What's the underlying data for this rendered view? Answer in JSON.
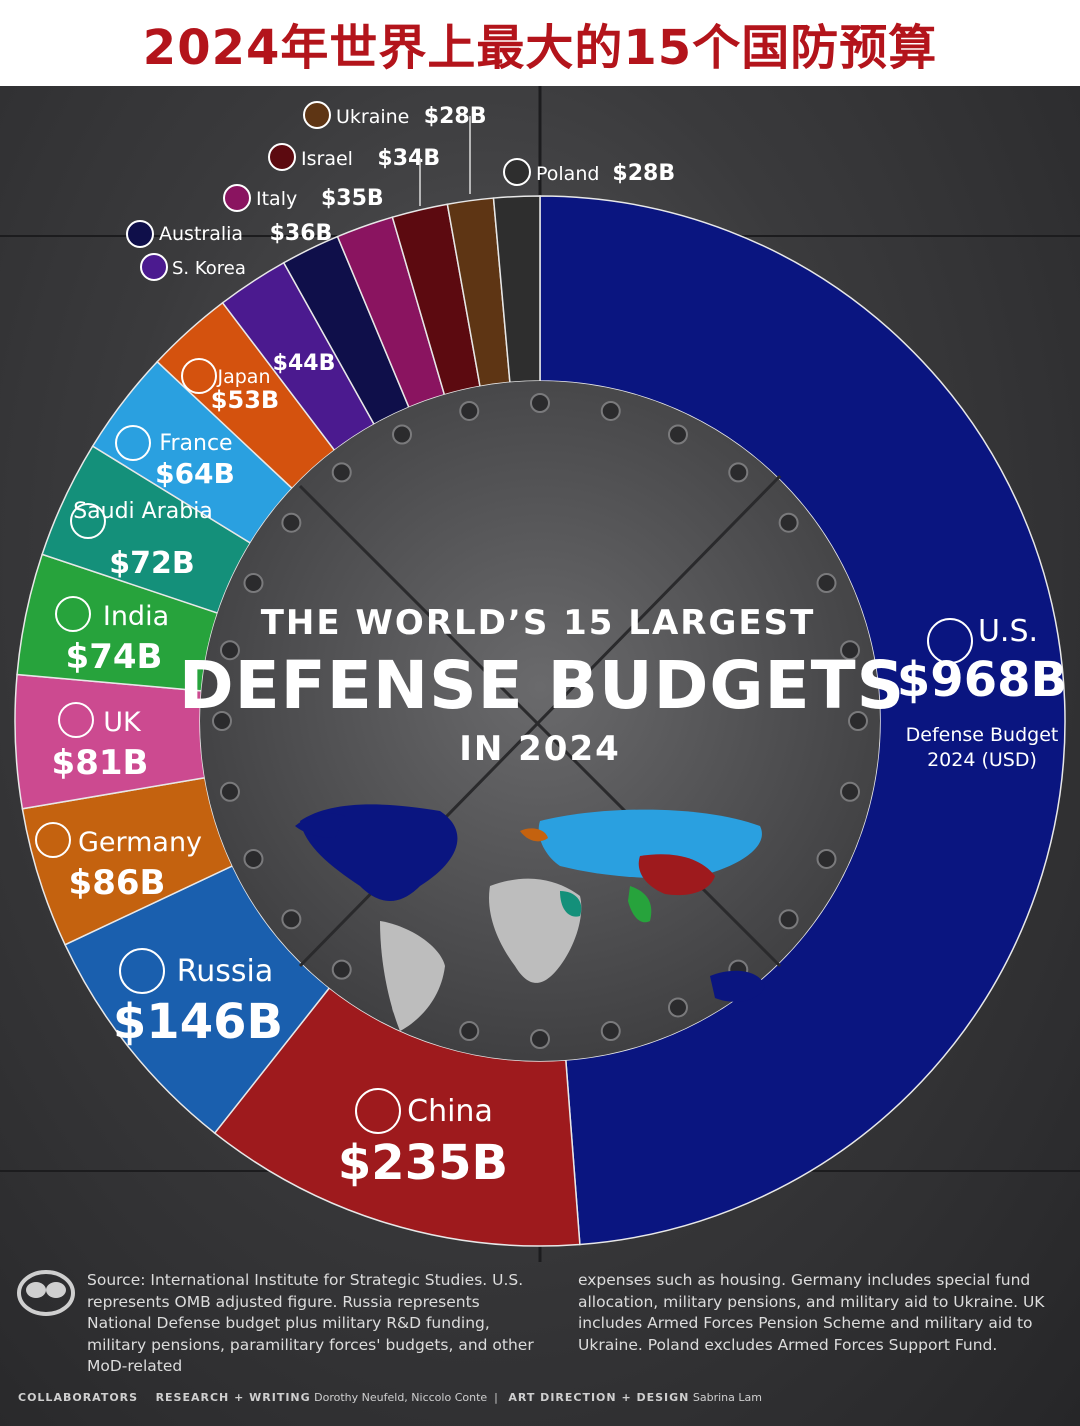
{
  "header": {
    "title": "2024年世界上最大的15个国防预算"
  },
  "center": {
    "line1": "THE WORLD’S 15 LARGEST",
    "line2": "DEFENSE BUDGETS",
    "line3": "IN 2024"
  },
  "us_caption": {
    "line1": "Defense Budget",
    "line2": "2024 (USD)"
  },
  "chart_data": {
    "type": "donut",
    "title": "THE WORLD’S 15 LARGEST DEFENSE BUDGETS IN 2024",
    "unit": "USD billions",
    "slices": [
      {
        "name": "U.S.",
        "value": 968,
        "label": "$968B",
        "color": "#0a1580"
      },
      {
        "name": "China",
        "value": 235,
        "label": "$235B",
        "color": "#9e1a1d"
      },
      {
        "name": "Russia",
        "value": 146,
        "label": "$146B",
        "color": "#1a5fae"
      },
      {
        "name": "Germany",
        "value": 86,
        "label": "$86B",
        "color": "#c4620f"
      },
      {
        "name": "UK",
        "value": 81,
        "label": "$81B",
        "color": "#cc4a90"
      },
      {
        "name": "India",
        "value": 74,
        "label": "$74B",
        "color": "#27a33c"
      },
      {
        "name": "Saudi Arabia",
        "value": 72,
        "label": "$72B",
        "color": "#14907a"
      },
      {
        "name": "France",
        "value": 64,
        "label": "$64B",
        "color": "#2aa0e0"
      },
      {
        "name": "Japan",
        "value": 53,
        "label": "$53B",
        "color": "#d4520e"
      },
      {
        "name": "S. Korea",
        "value": 44,
        "label": "$44B",
        "color": "#4b1a8f"
      },
      {
        "name": "Australia",
        "value": 36,
        "label": "$36B",
        "color": "#0f0f4a"
      },
      {
        "name": "Italy",
        "value": 35,
        "label": "$35B",
        "color": "#8a1460"
      },
      {
        "name": "Israel",
        "value": 34,
        "label": "$34B",
        "color": "#5c0a10"
      },
      {
        "name": "Ukraine",
        "value": 28,
        "label": "$28B",
        "color": "#5e3514"
      },
      {
        "name": "Poland",
        "value": 28,
        "label": "$28B",
        "color": "#2e2e2e"
      }
    ]
  },
  "footer": {
    "note_left": "Source: International Institute for Strategic Studies. U.S. represents OMB adjusted figure. Russia represents National Defense budget plus military R&D funding, military pensions, paramilitary  forces' budgets, and other MoD-related",
    "note_right": "expenses such as housing. Germany includes special fund allocation, military pensions, and military aid to Ukraine. UK includes Armed Forces Pension Scheme and military aid to Ukraine. Poland excludes Armed Forces Support Fund.",
    "collaborators": "COLLABORATORS",
    "research_label": "RESEARCH + WRITING",
    "research_names": "Dorothy Neufeld, Niccolo Conte",
    "art_label": "ART DIRECTION + DESIGN",
    "art_names": "Sabrina Lam"
  }
}
